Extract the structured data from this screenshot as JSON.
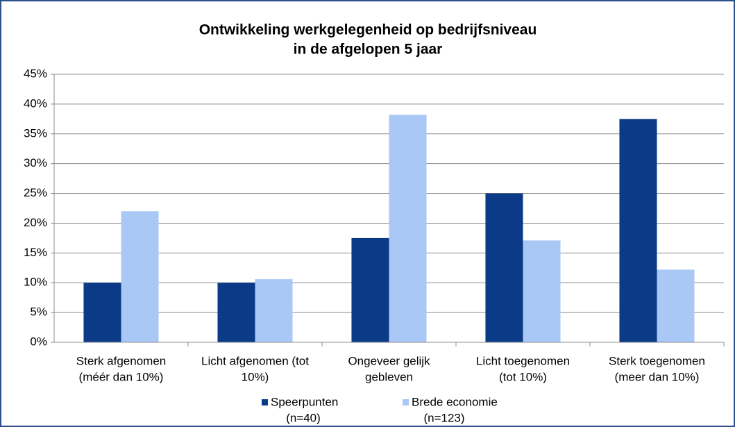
{
  "chart_data": {
    "type": "bar",
    "title": [
      "Ontwikkeling werkgelegenheid op bedrijfsniveau",
      "in de afgelopen 5 jaar"
    ],
    "categories": [
      [
        "Sterk afgenomen",
        "(méér dan 10%)"
      ],
      [
        "Licht afgenomen (tot",
        "10%)"
      ],
      [
        "Ongeveer gelijk",
        "gebleven"
      ],
      [
        "Licht toegenomen",
        "(tot 10%)"
      ],
      [
        "Sterk toegenomen",
        "(meer dan 10%)"
      ]
    ],
    "series": [
      {
        "name": [
          "Speerpunten",
          "(n=40)"
        ],
        "color": "#0b3a87",
        "values": [
          10,
          10,
          17.5,
          25,
          37.5
        ]
      },
      {
        "name": [
          "Brede economie",
          "(n=123)"
        ],
        "color": "#a9c8f5",
        "values": [
          22,
          10.6,
          38.2,
          17.1,
          12.2
        ]
      }
    ],
    "ylim": [
      0,
      45
    ],
    "yticks": [
      {
        "value": 0,
        "label": "0%"
      },
      {
        "value": 5,
        "label": "5%"
      },
      {
        "value": 10,
        "label": "10%"
      },
      {
        "value": 15,
        "label": "15%"
      },
      {
        "value": 20,
        "label": "20%"
      },
      {
        "value": 25,
        "label": "25%"
      },
      {
        "value": 30,
        "label": "30%"
      },
      {
        "value": 35,
        "label": "35%"
      },
      {
        "value": 40,
        "label": "40%"
      },
      {
        "value": 45,
        "label": "45%"
      }
    ],
    "grid": true,
    "legend": "bottom"
  }
}
